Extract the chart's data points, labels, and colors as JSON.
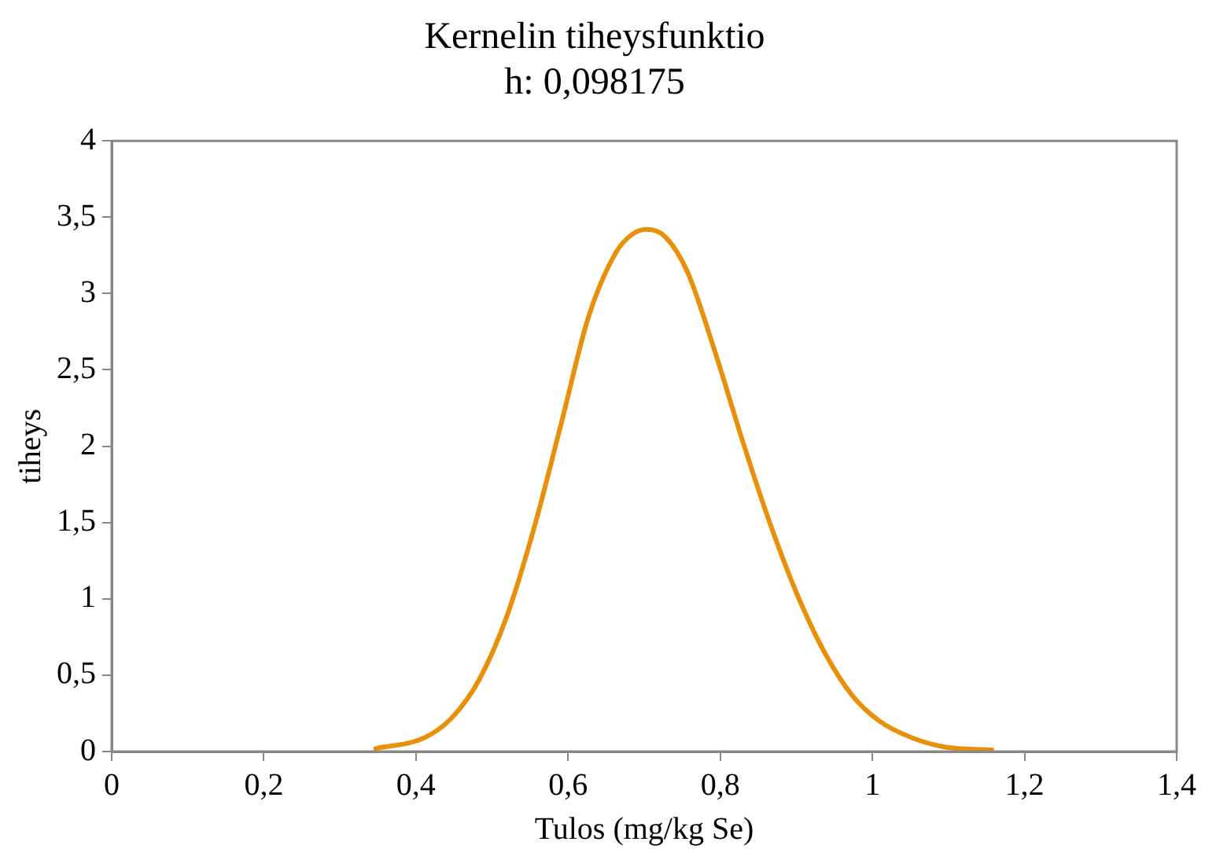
{
  "chart_data": {
    "type": "line",
    "title": "Kernelin tiheysfunktio",
    "subtitle": "h: 0,098175",
    "xlabel": "Tulos (mg/kg Se)",
    "ylabel": "tiheys",
    "x": [
      0.347,
      0.411,
      0.447,
      0.483,
      0.519,
      0.555,
      0.591,
      0.627,
      0.663,
      0.685,
      0.704,
      0.728,
      0.757,
      0.793,
      0.829,
      0.865,
      0.901,
      0.937,
      0.973,
      1.009,
      1.052,
      1.095,
      1.157
    ],
    "series": [
      {
        "color": "#e8900a",
        "values": [
          0.02,
          0.09,
          0.22,
          0.47,
          0.88,
          1.46,
          2.15,
          2.85,
          3.27,
          3.39,
          3.42,
          3.37,
          3.14,
          2.62,
          2.04,
          1.5,
          1.03,
          0.65,
          0.37,
          0.2,
          0.09,
          0.03,
          0.01
        ]
      }
    ],
    "xlim": [
      0,
      1.4
    ],
    "xticks": [
      0,
      {
        "value": 0.2,
        "label": "0,2"
      },
      {
        "value": 0.4,
        "label": "0,4"
      },
      {
        "value": 0.6,
        "label": "0,6"
      },
      {
        "value": 0.8,
        "label": "0,8"
      },
      1,
      {
        "value": 1.2,
        "label": "1,2"
      },
      {
        "value": 1.4,
        "label": "1,4"
      }
    ],
    "ylim": [
      0,
      4
    ],
    "yticks": [
      0,
      {
        "value": 0.5,
        "label": "0,5"
      },
      1,
      {
        "value": 1.5,
        "label": "1,5"
      },
      2,
      {
        "value": 2.5,
        "label": "2,5"
      },
      3,
      {
        "value": 3.5,
        "label": "3,5"
      },
      4
    ],
    "grid": false,
    "legend": false,
    "marker": "none",
    "line_style": "solid"
  }
}
